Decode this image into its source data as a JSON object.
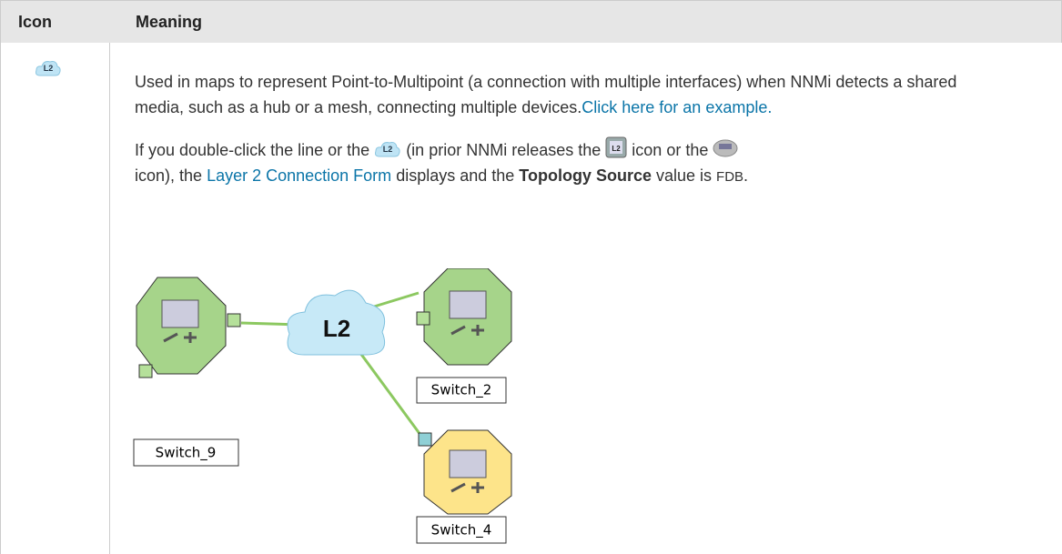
{
  "table": {
    "headers": [
      "Icon",
      "Meaning"
    ],
    "rows": [
      {
        "icon_label": "L2",
        "paragraph1": {
          "text": "Used in maps to represent Point-to-Multipoint (a connection with multiple interfaces) when NNMi detects a shared media, such as a hub or a mesh, connecting multiple devices.",
          "link": "Click here for an example."
        },
        "paragraph2": {
          "part1": "If you double-click the line or the",
          "part2": "(in prior NNMi releases the",
          "part3": "icon or the",
          "part4": "icon), the",
          "link": "Layer 2 Connection Form",
          "part5": "displays and the",
          "bold": "Topology Source",
          "part6": "value is",
          "code": "FDB",
          "end": "."
        },
        "diagram": {
          "cloud_label": "L2",
          "nodes": [
            {
              "label": "Switch_9"
            },
            {
              "label": "Switch_2"
            },
            {
              "label": "Switch_4"
            }
          ]
        }
      }
    ]
  }
}
